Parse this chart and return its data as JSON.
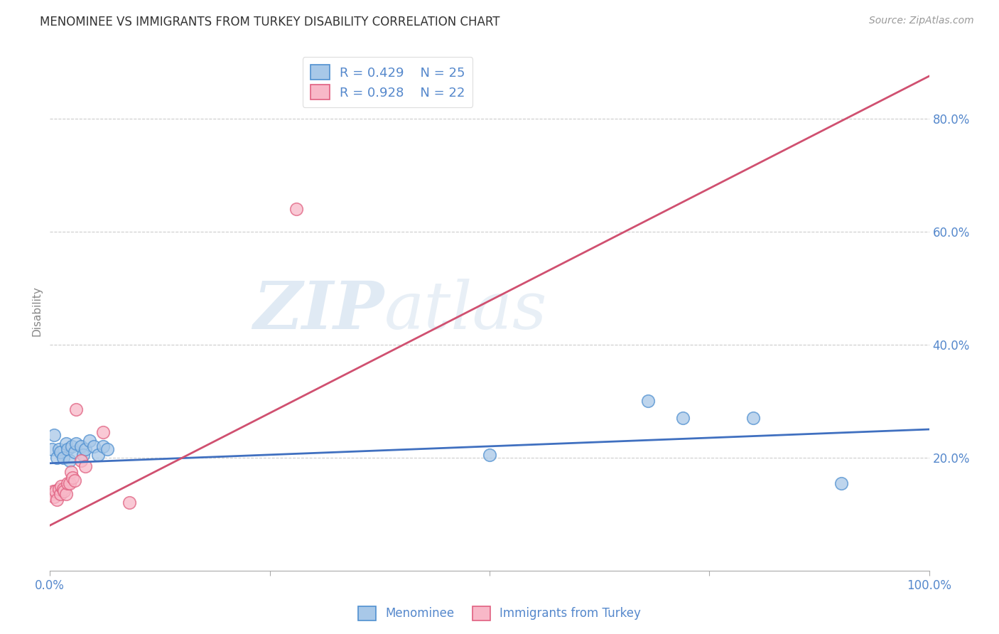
{
  "title": "MENOMINEE VS IMMIGRANTS FROM TURKEY DISABILITY CORRELATION CHART",
  "source": "Source: ZipAtlas.com",
  "ylabel": "Disability",
  "xlim": [
    0.0,
    1.0
  ],
  "ylim": [
    0.0,
    0.92
  ],
  "x_ticks": [
    0.0,
    0.25,
    0.5,
    0.75,
    1.0
  ],
  "x_tick_labels": [
    "0.0%",
    "",
    "",
    "",
    "100.0%"
  ],
  "y_ticks": [
    0.2,
    0.4,
    0.6,
    0.8
  ],
  "y_tick_labels": [
    "20.0%",
    "40.0%",
    "60.0%",
    "80.0%"
  ],
  "legend_r_blue": "R = 0.429",
  "legend_n_blue": "N = 25",
  "legend_r_pink": "R = 0.928",
  "legend_n_pink": "N = 22",
  "blue_scatter_x": [
    0.002,
    0.005,
    0.008,
    0.01,
    0.012,
    0.015,
    0.018,
    0.02,
    0.022,
    0.025,
    0.028,
    0.03,
    0.035,
    0.038,
    0.04,
    0.045,
    0.05,
    0.055,
    0.06,
    0.065,
    0.5,
    0.68,
    0.72,
    0.8,
    0.9
  ],
  "blue_scatter_y": [
    0.215,
    0.24,
    0.2,
    0.215,
    0.21,
    0.2,
    0.225,
    0.215,
    0.195,
    0.22,
    0.21,
    0.225,
    0.22,
    0.205,
    0.215,
    0.23,
    0.22,
    0.205,
    0.22,
    0.215,
    0.205,
    0.3,
    0.27,
    0.27,
    0.155
  ],
  "pink_scatter_x": [
    0.002,
    0.004,
    0.005,
    0.006,
    0.008,
    0.01,
    0.012,
    0.013,
    0.015,
    0.016,
    0.018,
    0.02,
    0.022,
    0.024,
    0.026,
    0.028,
    0.03,
    0.035,
    0.04,
    0.06,
    0.09,
    0.28
  ],
  "pink_scatter_y": [
    0.135,
    0.14,
    0.13,
    0.14,
    0.125,
    0.145,
    0.135,
    0.15,
    0.145,
    0.14,
    0.135,
    0.155,
    0.155,
    0.175,
    0.165,
    0.16,
    0.285,
    0.195,
    0.185,
    0.245,
    0.12,
    0.64
  ],
  "blue_line_x": [
    0.0,
    1.0
  ],
  "blue_line_y": [
    0.19,
    0.25
  ],
  "pink_line_x": [
    0.0,
    1.0
  ],
  "pink_line_y": [
    0.08,
    0.875
  ],
  "blue_scatter_color": "#a8c8e8",
  "blue_scatter_edge": "#5090d0",
  "pink_scatter_color": "#f8b8c8",
  "pink_scatter_edge": "#e06080",
  "blue_line_color": "#4070c0",
  "pink_line_color": "#d05070",
  "watermark_zip": "ZIP",
  "watermark_atlas": "atlas",
  "background_color": "#ffffff",
  "grid_color": "#cccccc",
  "title_color": "#333333",
  "source_color": "#999999",
  "axis_label_color": "#5588cc",
  "tick_label_color": "#5588cc"
}
